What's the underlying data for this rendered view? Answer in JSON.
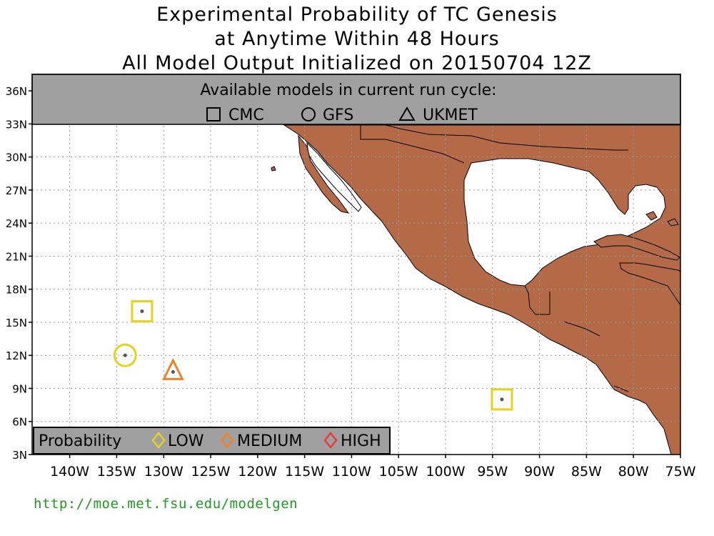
{
  "title": {
    "line1": "Experimental Probability of TC Genesis",
    "line2": "at Anytime Within 48 Hours",
    "line3": "All Model Output Initialized on 20150704 12Z"
  },
  "models_box": {
    "heading": "Available models in current run cycle:",
    "models": [
      {
        "symbol": "square-icon",
        "label": "CMC"
      },
      {
        "symbol": "circle-icon",
        "label": "GFS"
      },
      {
        "symbol": "triangle-icon",
        "label": "UKMET"
      }
    ]
  },
  "probability_legend": {
    "heading": "Probability",
    "levels": [
      {
        "label": "LOW",
        "color": "#e6d21e"
      },
      {
        "label": "MEDIUM",
        "color": "#f08228"
      },
      {
        "label": "HIGH",
        "color": "#e63c3c"
      }
    ]
  },
  "map": {
    "lat_range": [
      3,
      37.5
    ],
    "lon_range": [
      -144,
      -75
    ],
    "lat_ticks": [
      "3N",
      "6N",
      "9N",
      "12N",
      "15N",
      "18N",
      "21N",
      "24N",
      "27N",
      "30N",
      "33N",
      "36N"
    ],
    "lon_ticks": [
      "140W",
      "135W",
      "130W",
      "125W",
      "120W",
      "115W",
      "110W",
      "105W",
      "100W",
      "95W",
      "90W",
      "85W",
      "80W",
      "75W"
    ],
    "land_color": "#b46a46",
    "ocean_color": "#ffffff",
    "grid": "dotted"
  },
  "genesis_points": [
    {
      "model": "CMC",
      "shape": "square",
      "probability": "LOW",
      "lat": 16.0,
      "lon": -132.3
    },
    {
      "model": "GFS",
      "shape": "circle",
      "probability": "LOW",
      "lat": 12.0,
      "lon": -134.1
    },
    {
      "model": "UKMET",
      "shape": "triangle",
      "probability": "MEDIUM",
      "lat": 10.5,
      "lon": -129.0
    },
    {
      "model": "CMC",
      "shape": "square",
      "probability": "LOW",
      "lat": 8.0,
      "lon": -94.0
    }
  ],
  "footer": {
    "url": "http://moe.met.fsu.edu/modelgen"
  }
}
